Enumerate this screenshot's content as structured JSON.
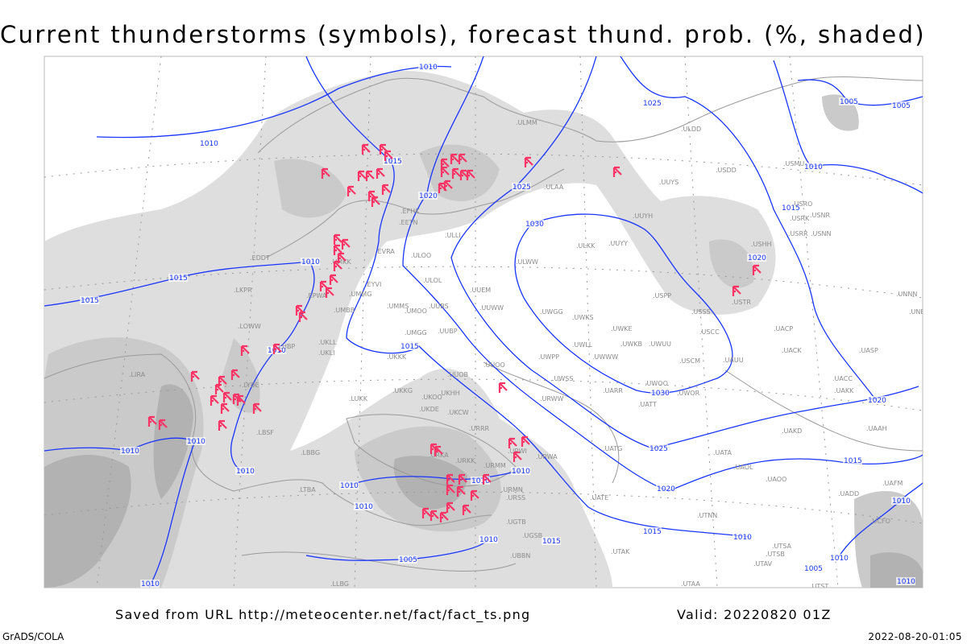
{
  "title": "Current thunderstorms (symbols), forecast thund. prob. (%, shaded)",
  "footer": {
    "saved_from": "Saved from URL http://meteocenter.net/fact/fact_ts.png",
    "valid": "Valid: 20220820 01Z",
    "software": "GrADS/COLA",
    "generated": "2022-08-20-01:05"
  },
  "colors": {
    "isobar": "#1a35ff",
    "storm_symbol": "#ff3366",
    "station_label": "#8c8c8c",
    "coastline": "#9a9a9a",
    "shade_light": "#dedede",
    "shade_mid": "#cacaca",
    "shade_dark": "#b2b2b2"
  },
  "legend": {
    "storm_symbol_icon": "thunderstorm-symbol-icon"
  },
  "isobar_labels": [
    "1010",
    "1010",
    "1015",
    "1020",
    "1025",
    "1025",
    "1030",
    "1005",
    "1005",
    "1010",
    "1015",
    "1020",
    "1010",
    "1015",
    "1015",
    "1010",
    "1015",
    "1030",
    "1025",
    "1020",
    "1015",
    "1020",
    "1010",
    "1010",
    "1010",
    "1010",
    "1010",
    "1010",
    "1010",
    "1010",
    "1015",
    "1005",
    "1015",
    "1010",
    "1010",
    "1010",
    "1005",
    "1010",
    "1010"
  ],
  "stations": [
    "ULMM",
    "ULDD",
    "USDD",
    "USMU",
    "ULAA",
    "UUYS",
    "UUYH",
    "USRO",
    "USRK",
    "USNR",
    "USRR",
    "USNN",
    "USHH",
    "ULKK",
    "UUYY",
    "ULWW",
    "EVRA",
    "ULOO",
    "ULOL",
    "UUEM",
    "UUWW",
    "UWGG",
    "UWKS",
    "USPP",
    "USSS",
    "USTR",
    "UNNN",
    "UNBB",
    "USCC",
    "UACP",
    "USCM",
    "UAUU",
    "UACK",
    "UASP",
    "UACC",
    "UAKK",
    "UWKE",
    "UWKB",
    "UWUU",
    "UWWW",
    "UWPP",
    "UWLL",
    "UUOO",
    "UUOB",
    "UWSS",
    "URWW",
    "UARR",
    "UWOO",
    "UWOR",
    "UATT",
    "UMMG",
    "EYVI",
    "UMMS",
    "UMOO",
    "UUBS",
    "UMGG",
    "UUBP",
    "UMBB",
    "UKLL",
    "UKLI",
    "UKKK",
    "UKKG",
    "LUKK",
    "UKOO",
    "UKHH",
    "UKDE",
    "UKCW",
    "URRR",
    "URKA",
    "URKK",
    "URMM",
    "URMN",
    "URWI",
    "UATG",
    "UATA",
    "UAOL",
    "UAOO",
    "UAKD",
    "UAAH",
    "UAFM",
    "UADD",
    "UTAK",
    "UTNN",
    "UTSA",
    "UTSB",
    "UTAV",
    "UTST",
    "UCFO",
    "UTAA",
    "EPWA",
    "EDDT",
    "LKPR",
    "LOWW",
    "LHBP",
    "LYBE",
    "LBSF",
    "LIRA",
    "LBBG",
    "LTBA",
    "LLBG",
    "UMKK",
    "ULLI",
    "EFHK",
    "EETN",
    "UGTB",
    "UGSB",
    "UBBN",
    "URSS",
    "UATE",
    "URWA"
  ]
}
